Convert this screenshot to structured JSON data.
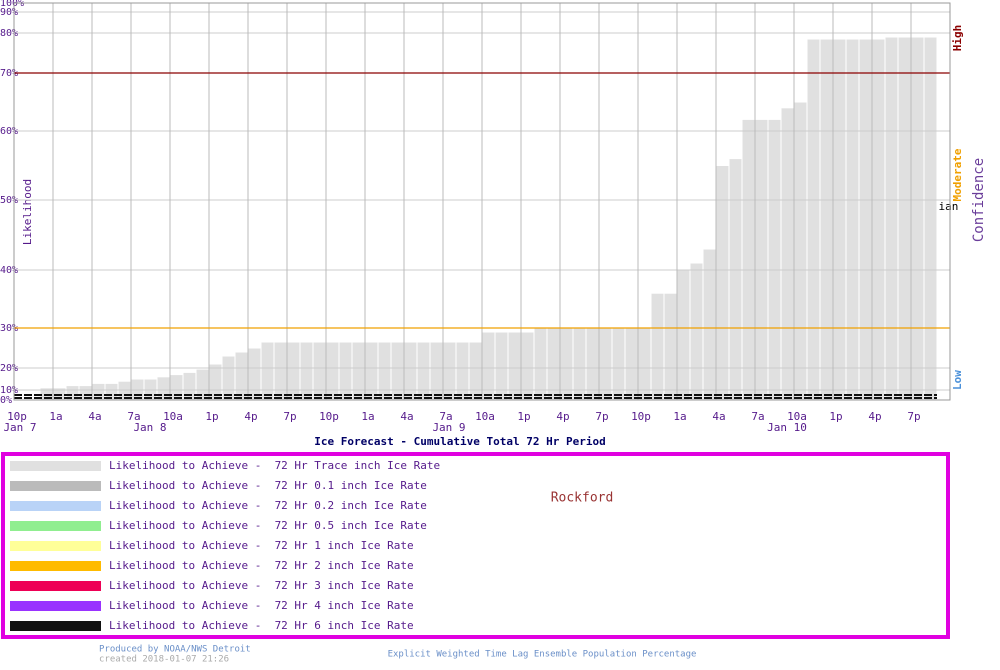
{
  "chart_data": {
    "type": "bar",
    "title": "Ice Forecast - Cumulative Total 72 Hr Period",
    "y_label": "Likelihood",
    "categories": [
      "10p",
      null,
      null,
      "1a",
      null,
      null,
      "4a",
      null,
      null,
      "7a",
      null,
      null,
      "10a",
      null,
      null,
      "1p",
      null,
      null,
      "4p",
      null,
      null,
      "7p",
      null,
      null,
      "10p",
      null,
      null,
      "1a",
      null,
      null,
      "4a",
      null,
      null,
      "7a",
      null,
      null,
      "10a",
      null,
      null,
      "1p",
      null,
      null,
      "4p",
      null,
      null,
      "7p",
      null,
      null,
      "10p",
      null,
      null,
      "1a",
      null,
      null,
      "4a",
      null,
      null,
      "7a",
      null,
      null,
      "10a",
      null,
      null,
      "1p",
      null,
      null,
      "4p",
      null,
      null,
      "7p",
      null,
      null
    ],
    "dates": [
      "Jan 7",
      null,
      null,
      null,
      null,
      null,
      null,
      null,
      null,
      null,
      "Jan 8",
      null,
      null,
      null,
      null,
      null,
      null,
      null,
      null,
      null,
      null,
      null,
      null,
      null,
      null,
      null,
      null,
      null,
      null,
      null,
      null,
      null,
      null,
      "Jan 9",
      null,
      null,
      null,
      null,
      null,
      null,
      null,
      null,
      null,
      null,
      null,
      null,
      null,
      null,
      null,
      null,
      null,
      null,
      null,
      null,
      null,
      null,
      null,
      null,
      null,
      "Jan 10",
      null,
      null,
      null,
      null,
      null,
      null,
      null,
      null,
      null,
      null,
      null,
      null
    ],
    "values": [
      null,
      null,
      11,
      11,
      12,
      12,
      13,
      13,
      14,
      15,
      15,
      16,
      17,
      18,
      19.5,
      21,
      23,
      24,
      25,
      26.5,
      26.5,
      26.5,
      26.5,
      26.5,
      26.5,
      26.5,
      26.5,
      26.5,
      26.5,
      26.5,
      26.5,
      26.5,
      26.5,
      26.5,
      26.5,
      26.5,
      29,
      29,
      29,
      29,
      30,
      30,
      30,
      30,
      30,
      30,
      30,
      30,
      30,
      36,
      36,
      40,
      41,
      43,
      55,
      56,
      62,
      62,
      62,
      64,
      65,
      78.5,
      78.5,
      78.5,
      78.5,
      78.5,
      78.5,
      79,
      79,
      79,
      79,
      null
    ],
    "color": "#e0e0e0",
    "ylim": [
      0,
      100
    ],
    "yticks": [
      {
        "value": 0,
        "label": "0%"
      },
      {
        "value": 10,
        "label": "10%"
      },
      {
        "value": 20,
        "label": "20%"
      },
      {
        "value": 30,
        "label": "30%"
      },
      {
        "value": 40,
        "label": "40%"
      },
      {
        "value": 50,
        "label": "50%"
      },
      {
        "value": 60,
        "label": "60%"
      },
      {
        "value": 70,
        "label": "70%"
      },
      {
        "value": 80,
        "label": "80%"
      },
      {
        "value": 90,
        "label": "90%"
      },
      {
        "value": 100,
        "label": "100%"
      }
    ],
    "grid": true,
    "thresholds": [
      {
        "value": 70,
        "color": "#8b0000"
      },
      {
        "value": 30,
        "color": "#f0a000"
      }
    ],
    "confidence_title": "Confidence",
    "confidence_labels": [
      {
        "label": "High",
        "color": "#8b0000"
      },
      {
        "label": "Moderate",
        "color": "#f0a000"
      },
      {
        "label": "Low",
        "color": "#4a90d9"
      }
    ],
    "annotation": "Ensemble Median",
    "legend": {
      "location": "Rockford",
      "entries": [
        {
          "name": "Likelihood to Achieve -  72 Hr Trace inch Ice Rate",
          "color": "#e0e0e0"
        },
        {
          "name": "Likelihood to Achieve -  72 Hr 0.1 inch Ice Rate",
          "color": "#bbbbbb"
        },
        {
          "name": "Likelihood to Achieve -  72 Hr 0.2 inch Ice Rate",
          "color": "#b9d3f7"
        },
        {
          "name": "Likelihood to Achieve -  72 Hr 0.5 inch Ice Rate",
          "color": "#90ee90"
        },
        {
          "name": "Likelihood to Achieve -  72 Hr 1 inch Ice Rate",
          "color": "#ffff99"
        },
        {
          "name": "Likelihood to Achieve -  72 Hr 2 inch Ice Rate",
          "color": "#ffbb00"
        },
        {
          "name": "Likelihood to Achieve -  72 Hr 3 inch Ice Rate",
          "color": "#ee0055"
        },
        {
          "name": "Likelihood to Achieve -  72 Hr 4 inch Ice Rate",
          "color": "#9933ff"
        },
        {
          "name": "Likelihood to Achieve -  72 Hr 6 inch Ice Rate",
          "color": "#111111"
        }
      ]
    },
    "footer": {
      "produced": "Produced by NOAA/NWS Detroit",
      "created": "created 2018-01-07 21:26",
      "note": "Explicit Weighted Time Lag Ensemble Population Percentage"
    }
  }
}
